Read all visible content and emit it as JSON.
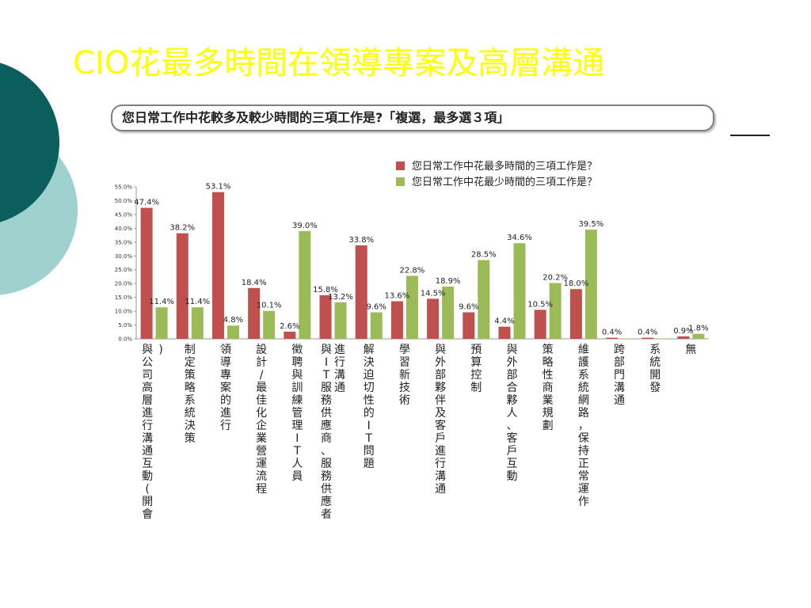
{
  "slide": {
    "title": "CIO花最多時間在領導專案及高層溝通",
    "subtitle": "您日常工作中花較多及較少時間的三項工作是?「複選，最多選３項」",
    "colors": {
      "title": "#ffff00",
      "dark_teal": "#0b5e5b",
      "light_teal": "#9fd1cf"
    }
  },
  "chart_data": {
    "type": "bar",
    "categories": [
      "與公司高層進行溝通互動(開會)",
      "制定策略系統決策",
      "領導專案的進行",
      "設計/最佳化企業營運流程",
      "徵聘與訓練管理IT人員",
      "與IT服務供應商、服務供應者進行溝通",
      "解決迫切性的IT問題",
      "學習新技術",
      "與外部夥伴及客戶進行溝通",
      "預算控制",
      "與外部合夥人、客戶互動",
      "策略性商業規劃",
      "維護系統網路，保持正常運作",
      "跨部門溝通",
      "系統開發",
      "無"
    ],
    "series": [
      {
        "name": "您日常工作中花最多時間的三項工作是？",
        "color": "#c0504d",
        "values": [
          47.4,
          38.2,
          53.1,
          18.4,
          2.6,
          15.8,
          33.8,
          13.6,
          14.5,
          9.6,
          4.4,
          10.5,
          18.0,
          0.4,
          0.4,
          0.9
        ],
        "labels": [
          "47.4%",
          "38.2%",
          "53.1%",
          "18.4%",
          "2.6%",
          "15.8%",
          "33.8%",
          "13.6%",
          "14.5%",
          "9.6%",
          "4.4%",
          "10.5%",
          "18.0%",
          "0.4%",
          "0.4%",
          "0.9%"
        ]
      },
      {
        "name": "您日常工作中花最少時間的三項工作是？",
        "color": "#9bbb59",
        "values": [
          11.4,
          11.4,
          4.8,
          10.1,
          39.0,
          13.2,
          9.6,
          22.8,
          18.9,
          28.5,
          34.6,
          20.2,
          39.5,
          0,
          0,
          1.8
        ],
        "labels": [
          "11.4%",
          "11.4%",
          "4.8%",
          "10.1%",
          "39.0%",
          "13.2%",
          "9.6%",
          "22.8%",
          "18.9%",
          "28.5%",
          "34.6%",
          "20.2%",
          "39.5%",
          "",
          "",
          "1.8%"
        ]
      }
    ],
    "ylim": [
      0,
      55
    ],
    "yticks": [
      "0.0%",
      "5.0%",
      "10.0%",
      "15.0%",
      "20.0%",
      "25.0%",
      "30.0%",
      "35.0%",
      "40.0%",
      "45.0%",
      "50.0%",
      "55.0%"
    ],
    "grid": false,
    "legend_position": "top-right"
  }
}
